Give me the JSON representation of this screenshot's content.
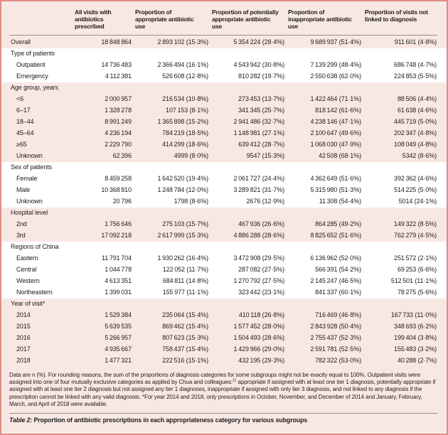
{
  "colors": {
    "border": "#dd8e86",
    "pink": "#f8e8e4",
    "paper": "#ffffff",
    "rule": "#8f8f8f",
    "text": "#1c1c1b"
  },
  "table": {
    "columns": [
      "",
      "All visits with\nantibiotics\nprescribed",
      "Proportion of\nappropriate antibiotic\nuse",
      "Proportion of potentially\nappropriate antibiotic\nuse",
      "Proportion of\ninappropriate antibiotic\nuse",
      "Proportion of visits not\nlinked to diagnosis"
    ],
    "sections": [
      {
        "label": null,
        "shade": "pink",
        "rows": [
          [
            "Overall",
            "18 848 864",
            "2 893 102 (15·3%)",
            "5 354 224 (28·4%)",
            "9 689 937 (51·4%)",
            "911 601 (4·8%)"
          ]
        ]
      },
      {
        "label": "Type of patients",
        "shade": "white",
        "rows": [
          [
            "Outpatient",
            "14 736 483",
            "2 366 494 (16·1%)",
            "4 543 942 (30·8%)",
            "7 139 299 (48·4%)",
            "686 748 (4·7%)"
          ],
          [
            "Emergency",
            "4 112 381",
            "526 608 (12·8%)",
            "810 282 (19·7%)",
            "2 550 638 (62·0%)",
            "224 853 (5·5%)"
          ]
        ]
      },
      {
        "label": "Age group, years",
        "shade": "pink",
        "rows": [
          [
            "<6",
            "2 000 957",
            "216 534 (10·8%)",
            "273 453 (13·7%)",
            "1 422 464 (71·1%)",
            "88 506 (4·4%)"
          ],
          [
            "6–17",
            "1 328 278",
            "107 153 (8·1%)",
            "341 345 (25·7%)",
            "818 142 (61·6%)",
            "61 638 (4·6%)"
          ],
          [
            "18–44",
            "8 991 249",
            "1 365 898 (15·2%)",
            "2 941 486 (32·7%)",
            "4 238 146 (47·1%)",
            "445 719 (5·0%)"
          ],
          [
            "45–64",
            "4 236 194",
            "784 219 (18·5%)",
            "1 148 981 (27·1%)",
            "2 100 647 (49·6%)",
            "202 347 (4·8%)"
          ],
          [
            "≥65",
            "2 229 790",
            "414 299 (18·6%)",
            "639 412 (28·7%)",
            "1 068 030 (47·9%)",
            "108 049 (4·8%)"
          ],
          [
            "Unknown",
            "62 396",
            "4999 (8·0%)",
            "9547 (15·3%)",
            "42 508 (68·1%)",
            "5342 (8·6%)"
          ]
        ]
      },
      {
        "label": "Sex of patients",
        "shade": "white",
        "rows": [
          [
            "Female",
            "8 459 258",
            "1 642 520 (19·4%)",
            "2 061 727 (24·4%)",
            "4 362 649 (51·6%)",
            "392 362 (4·6%)"
          ],
          [
            "Male",
            "10 368 810",
            "1 248 784 (12·0%)",
            "3 289 821 (31·7%)",
            "5 315 980 (51·3%)",
            "514 225 (5·0%)"
          ],
          [
            "Unknown",
            "20 796",
            "1798 (8·6%)",
            "2676 (12·9%)",
            "11 308 (54·4%)",
            "5014 (24·1%)"
          ]
        ]
      },
      {
        "label": "Hospital level",
        "shade": "pink",
        "rows": [
          [
            "2nd",
            "1 756 646",
            "275 103 (15·7%)",
            "467 936 (26·6%)",
            "864 285 (49·2%)",
            "149 322 (8·5%)"
          ],
          [
            "3rd",
            "17 092 218",
            "2 617 999 (15·3%)",
            "4 886 288 (28·6%)",
            "8 825 652 (51·6%)",
            "762 279 (4·5%)"
          ]
        ]
      },
      {
        "label": "Regions of China",
        "shade": "white",
        "rows": [
          [
            "Eastern",
            "11 791 704",
            "1 930 262 (16·4%)",
            "3 472 908 (29·5%)",
            "6 136 962 (52·0%)",
            "251 572 (2·1%)"
          ],
          [
            "Central",
            "1 044 778",
            "122 052 (11·7%)",
            "287 082 (27·5%)",
            "566 391 (54·2%)",
            "69 253 (6·6%)"
          ],
          [
            "Western",
            "4 613 351",
            "684 811 (14·8%)",
            "1 270 792 (27·5%)",
            "2 145 247 (46·5%)",
            "512 501 (11·1%)"
          ],
          [
            "Northeastern",
            "1 399 031",
            "155 977 (11·1%)",
            "323 442 (23·1%)",
            "841 337 (60·1%)",
            "78 275 (5·6%)"
          ]
        ]
      },
      {
        "label": "Year of visit*",
        "shade": "pink",
        "rows": [
          [
            "2014",
            "1 529 384",
            "235 064 (15·4%)",
            "410 118 (26·8%)",
            "716 469 (46·8%)",
            "167 733 (11·0%)"
          ],
          [
            "2015",
            "5 639 535",
            "869 462 (15·4%)",
            "1 577 452 (28·0%)",
            "2 843 928 (50·4%)",
            "348 693 (6·2%)"
          ],
          [
            "2016",
            "5 266 957",
            "807 623 (15·3%)",
            "1 504 493 (28·6%)",
            "2 755 437 (52·3%)",
            "199 404 (3·8%)"
          ],
          [
            "2017",
            "4 935 667",
            "758 437 (15·4%)",
            "1 429 966 (29·0%)",
            "2 591 781 (52·5%)",
            "155 483 (3·2%)"
          ],
          [
            "2018",
            "1 477 321",
            "222 516 (15·1%)",
            "432 195 (29·3%)",
            "782 322 (53·0%)",
            "40 288 (2·7%)"
          ]
        ]
      }
    ]
  },
  "footnote": {
    "part1": "Data are n (%). For rounding reasons, the sum of the proportions of diagnosis categories for some subgroups might not be exactly equal to 100%. Outpatient visits were assigned into one of four mutually exclusive categories as applied by Chua and colleagues:",
    "sup": "11",
    "part2": " appropriate if assigned with at least one tier 1 diagnosis, potentially appropriate if assigned with at least one tier 2 diagnosis but not assigned any tier 1 diagnoses, inappropriate if assigned with only tier 3 diagnosis, and not linked to any diagnosis if the prescription cannot be linked with any valid diagnosis. *For year 2014 and 2018, only prescriptions in October, November, and December of 2014 and January, February, March, and April of 2018 were available."
  },
  "caption": {
    "label": "Table 2:",
    "text": " Proportion of antibiotic prescriptions in each appropriateness category for various subgroups"
  }
}
